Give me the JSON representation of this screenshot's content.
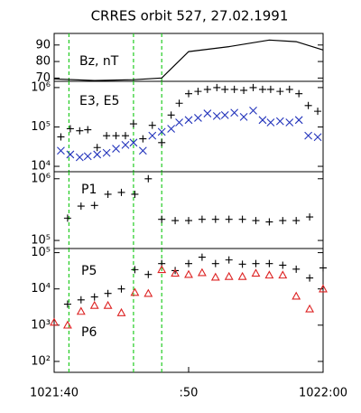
{
  "chart_data": [
    {
      "type": "line",
      "title": "CRRES orbit 527, 27.02.1991",
      "label": "Bz, nT",
      "x": [
        0,
        3,
        5.9,
        8,
        10,
        13,
        16,
        18,
        20
      ],
      "series": [
        {
          "color": "#000000",
          "values": [
            69.5,
            68.5,
            69,
            70,
            86,
            89,
            93,
            92,
            87
          ]
        }
      ],
      "xlim": [
        0,
        20
      ],
      "ylim": [
        68,
        97
      ],
      "yticks": [
        70,
        80,
        90
      ],
      "vlines": [
        1.1,
        5.9,
        8.0
      ],
      "vline_color": "#22cc22"
    },
    {
      "type": "scatter",
      "label": "E3, E5",
      "log": true,
      "x": [
        0.5,
        1.2,
        1.9,
        2.5,
        3.2,
        3.9,
        4.6,
        5.3,
        5.9,
        6.6,
        7.3,
        8.0,
        8.7,
        9.3,
        10.0,
        10.7,
        11.4,
        12.1,
        12.7,
        13.4,
        14.1,
        14.8,
        15.5,
        16.1,
        16.8,
        17.5,
        18.2,
        18.9,
        19.6
      ],
      "series": [
        {
          "color": "#000000",
          "marker": "plus",
          "values": [
            56000,
            90000,
            80000,
            85000,
            30000,
            60000,
            60000,
            60000,
            120000,
            50000,
            110000,
            40000,
            200000,
            400000,
            700000,
            800000,
            900000,
            1000000,
            900000,
            900000,
            850000,
            1000000,
            900000,
            900000,
            800000,
            900000,
            700000,
            350000,
            250000
          ]
        },
        {
          "color": "#2233bb",
          "marker": "x",
          "values": [
            25000,
            20000,
            17000,
            18000,
            20000,
            22000,
            28000,
            35000,
            40000,
            25000,
            60000,
            75000,
            90000,
            130000,
            150000,
            170000,
            220000,
            190000,
            200000,
            230000,
            180000,
            260000,
            150000,
            130000,
            140000,
            130000,
            150000,
            60000,
            55000
          ]
        }
      ],
      "xlim": [
        0,
        20
      ],
      "ylim": [
        7300,
        1440000
      ],
      "yticks": [
        {
          "value": 10000,
          "label": "10⁴"
        },
        {
          "value": 100000,
          "label": "10⁵"
        },
        {
          "value": 1000000,
          "label": "10⁶"
        }
      ],
      "vlines": [
        1.1,
        5.9,
        8.0
      ],
      "vline_color": "#22cc22"
    },
    {
      "type": "scatter",
      "log": true,
      "x": [
        1,
        2,
        3,
        4,
        5,
        6,
        7,
        8,
        9,
        10,
        11,
        12,
        13,
        14,
        15,
        16,
        17,
        18,
        19
      ],
      "series": [
        {
          "name": "P1",
          "color": "#000000",
          "marker": "plus",
          "values": [
            230000,
            360000,
            370000,
            560000,
            600000,
            560000,
            1000000,
            220000,
            210000,
            210000,
            220000,
            220000,
            220000,
            220000,
            210000,
            200000,
            210000,
            210000,
            240000
          ]
        }
      ],
      "xlim": [
        0,
        20
      ],
      "ylim": [
        74000,
        1300000
      ],
      "yticks": [
        {
          "value": 100000,
          "label": "10⁵"
        },
        {
          "value": 1000000,
          "label": "10⁶"
        }
      ],
      "vlines": [
        1.1,
        5.9,
        8.0
      ],
      "vline_color": "#22cc22"
    },
    {
      "type": "scatter",
      "log": true,
      "x": [
        0,
        1,
        2,
        3,
        4,
        5,
        6,
        7,
        8,
        9,
        10,
        11,
        12,
        13,
        14,
        15,
        16,
        17,
        18,
        19,
        20
      ],
      "series": [
        {
          "name": "P5",
          "color": "#000000",
          "marker": "plus",
          "values": [
            null,
            3800,
            5000,
            6000,
            7500,
            10000,
            34000,
            25000,
            50000,
            32000,
            50000,
            75000,
            50000,
            63000,
            48000,
            50000,
            50000,
            45000,
            35000,
            20000,
            38000
          ]
        },
        {
          "name": "P6",
          "color": "#dd2222",
          "marker": "triangle",
          "values": [
            1200,
            1000,
            2400,
            3500,
            3500,
            2200,
            8000,
            7500,
            34000,
            27000,
            25000,
            28000,
            21000,
            22000,
            22000,
            27000,
            24000,
            24000,
            6300,
            2800,
            10000
          ]
        }
      ],
      "xlim": [
        0,
        20
      ],
      "ylim": [
        50,
        130000
      ],
      "yticks": [
        {
          "value": 100,
          "label": "10²"
        },
        {
          "value": 1000,
          "label": "10³"
        },
        {
          "value": 10000,
          "label": "10⁴"
        },
        {
          "value": 100000,
          "label": "10⁵"
        }
      ],
      "xticks": [
        {
          "value": 0,
          "label": "1021:40"
        },
        {
          "value": 10,
          "label": ":50"
        },
        {
          "value": 20,
          "label": "1022:00"
        }
      ],
      "vlines": [
        1.1,
        5.9,
        8.0
      ],
      "vline_color": "#22cc22"
    }
  ]
}
